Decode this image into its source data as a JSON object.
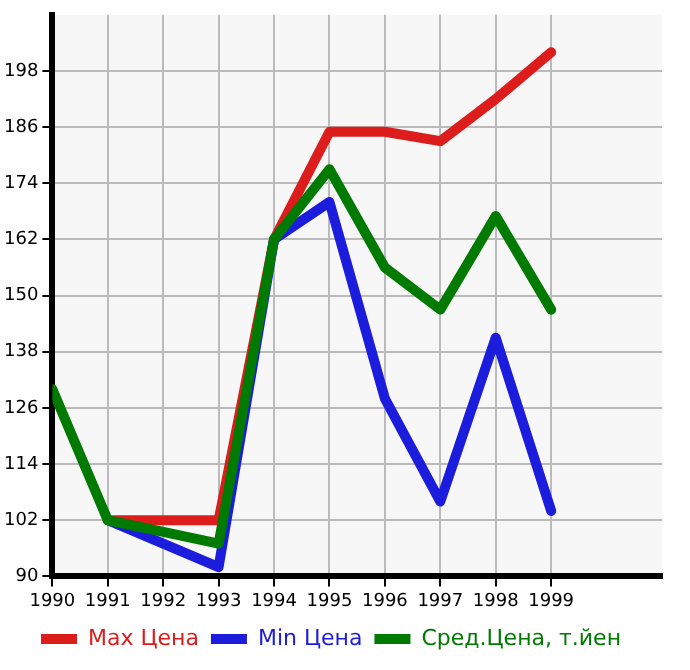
{
  "chart_data": {
    "type": "line",
    "x": [
      1990,
      1991,
      1992,
      1993,
      1994,
      1995,
      1996,
      1997,
      1998,
      1999
    ],
    "series": [
      {
        "name": "Max Цена",
        "color": "#dd1c1c",
        "values": [
          null,
          102,
          102,
          102,
          162,
          185,
          185,
          183,
          192,
          202
        ]
      },
      {
        "name": "Min Цена",
        "color": "#1c1cdd",
        "values": [
          null,
          102,
          97,
          92,
          162,
          170,
          128,
          106,
          141,
          104
        ]
      },
      {
        "name": "Сред.Цена, т.йен",
        "color": "#007a00",
        "values": [
          130,
          102,
          99.5,
          97,
          162,
          177,
          156,
          147,
          167,
          147
        ]
      }
    ],
    "xlim": [
      1990,
      2001
    ],
    "xticks": [
      1990,
      1991,
      1992,
      1993,
      1994,
      1995,
      1996,
      1997,
      1998,
      1999
    ],
    "ylim": [
      90,
      210
    ],
    "yticks": [
      90,
      102,
      114,
      126,
      138,
      150,
      162,
      174,
      186,
      198
    ],
    "grid": true,
    "legend": "bottom",
    "marker": "none",
    "line_style": "solid"
  }
}
